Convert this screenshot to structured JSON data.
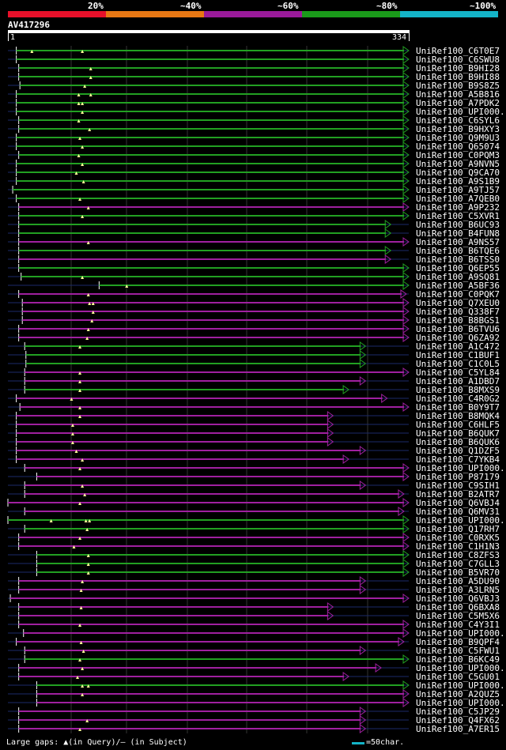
{
  "legend": {
    "labels": [
      "20%",
      "~40%",
      "~60%",
      "~80%",
      "~100%"
    ],
    "colors": [
      "#e8102a",
      "#e87814",
      "#9a1a9a",
      "#1a9a1a",
      "#14b4c8"
    ]
  },
  "query": {
    "name": "AV417296",
    "start": "1",
    "end": "334",
    "length": 334
  },
  "colors": {
    "green": "#22a022",
    "magenta": "#a020a0",
    "gap": "#1c2a6a",
    "marker": "#ffff99"
  },
  "hits": [
    {
      "label": "UniRef100_C6T0E7",
      "s": 7,
      "e": 334,
      "c": "green",
      "t": 2,
      "m": [
        20,
        62
      ]
    },
    {
      "label": "UniRef100_C6SWU8",
      "s": 7,
      "e": 334,
      "c": "green",
      "t": 2,
      "m": []
    },
    {
      "label": "UniRef100_B9HI28",
      "s": 9,
      "e": 334,
      "c": "green",
      "t": 2,
      "m": [
        69
      ]
    },
    {
      "label": "UniRef100_B9HI88",
      "s": 9,
      "e": 334,
      "c": "green",
      "t": 2,
      "m": [
        69
      ]
    },
    {
      "label": "UniRef100_B9S8Z5",
      "s": 10,
      "e": 334,
      "c": "green",
      "t": 2,
      "m": [
        64
      ]
    },
    {
      "label": "UniRef100_A5B816",
      "s": 7,
      "e": 334,
      "c": "green",
      "t": 2,
      "m": [
        59,
        69
      ]
    },
    {
      "label": "UniRef100_A7PDK2",
      "s": 7,
      "e": 334,
      "c": "green",
      "t": 2,
      "m": [
        59,
        62
      ]
    },
    {
      "label": "UniRef100_UPI000..",
      "s": 7,
      "e": 334,
      "c": "green",
      "t": 2,
      "m": [
        62
      ]
    },
    {
      "label": "UniRef100_C6SYL6",
      "s": 9,
      "e": 334,
      "c": "green",
      "t": 2,
      "m": [
        59
      ]
    },
    {
      "label": "UniRef100_B9HXY3",
      "s": 9,
      "e": 334,
      "c": "green",
      "t": 2,
      "m": [
        68
      ]
    },
    {
      "label": "UniRef100_Q9M9U3",
      "s": 7,
      "e": 334,
      "c": "green",
      "t": 2,
      "m": [
        60
      ]
    },
    {
      "label": "UniRef100_Q65074",
      "s": 7,
      "e": 334,
      "c": "green",
      "t": 2,
      "m": [
        62
      ]
    },
    {
      "label": "UniRef100_C0PQM3",
      "s": 9,
      "e": 334,
      "c": "green",
      "t": 2,
      "m": [
        59
      ]
    },
    {
      "label": "UniRef100_A9NVN5",
      "s": 7,
      "e": 334,
      "c": "green",
      "t": 2,
      "m": [
        62
      ]
    },
    {
      "label": "UniRef100_Q9CA70",
      "s": 7,
      "e": 334,
      "c": "green",
      "t": 2,
      "m": [
        57
      ]
    },
    {
      "label": "UniRef100_A9S1B9",
      "s": 7,
      "e": 334,
      "c": "green",
      "t": 2,
      "m": [
        63
      ]
    },
    {
      "label": "UniRef100_A9TJ57",
      "s": 4,
      "e": 334,
      "c": "green",
      "t": 2,
      "m": []
    },
    {
      "label": "UniRef100_A7QEB0",
      "s": 7,
      "e": 334,
      "c": "green",
      "t": 2,
      "m": [
        60
      ]
    },
    {
      "label": "UniRef100_A9P232",
      "s": 9,
      "e": 334,
      "c": "magenta",
      "t": 2,
      "m": [
        67
      ]
    },
    {
      "label": "UniRef100_C5XVR1",
      "s": 9,
      "e": 334,
      "c": "green",
      "t": 2,
      "m": [
        62
      ]
    },
    {
      "label": "UniRef100_B6UC93",
      "s": 9,
      "e": 319,
      "c": "green",
      "t": 2,
      "m": []
    },
    {
      "label": "UniRef100_B4FUN8",
      "s": 9,
      "e": 319,
      "c": "green",
      "t": 2,
      "m": []
    },
    {
      "label": "UniRef100_A9NS57",
      "s": 9,
      "e": 334,
      "c": "magenta",
      "t": 2,
      "m": [
        67
      ]
    },
    {
      "label": "UniRef100_B6TQE6",
      "s": 9,
      "e": 319,
      "c": "green",
      "t": 2,
      "m": []
    },
    {
      "label": "UniRef100_B6TSS0",
      "s": 9,
      "e": 319,
      "c": "magenta",
      "t": 2,
      "m": []
    },
    {
      "label": "UniRef100_Q6EP55",
      "s": 9,
      "e": 334,
      "c": "green",
      "t": 2,
      "m": []
    },
    {
      "label": "UniRef100_A9SQ81",
      "s": 11,
      "e": 334,
      "c": "green",
      "t": 2,
      "m": [
        62
      ]
    },
    {
      "label": "UniRef100_A5BF36",
      "s": 76,
      "e": 334,
      "c": "green",
      "t": 2,
      "m": [
        99
      ]
    },
    {
      "label": "UniRef100_C0PQK7",
      "s": 9,
      "e": 332,
      "c": "magenta",
      "t": 2,
      "m": [
        67
      ]
    },
    {
      "label": "UniRef100_Q7XEU0",
      "s": 12,
      "e": 334,
      "c": "magenta",
      "t": 2,
      "m": [
        68,
        71
      ]
    },
    {
      "label": "UniRef100_Q338F7",
      "s": 12,
      "e": 334,
      "c": "magenta",
      "t": 2,
      "m": [
        71
      ]
    },
    {
      "label": "UniRef100_B8BGS1",
      "s": 12,
      "e": 334,
      "c": "magenta",
      "t": 2,
      "m": [
        70
      ]
    },
    {
      "label": "UniRef100_B6TVU6",
      "s": 9,
      "e": 334,
      "c": "magenta",
      "t": 2,
      "m": [
        67
      ]
    },
    {
      "label": "UniRef100_Q6ZA92",
      "s": 9,
      "e": 334,
      "c": "magenta",
      "t": 2,
      "m": [
        66
      ]
    },
    {
      "label": "UniRef100_A1C472",
      "s": 14,
      "e": 298,
      "c": "green",
      "t": 2,
      "m": [
        60
      ]
    },
    {
      "label": "UniRef100_C1BUF1",
      "s": 15,
      "e": 298,
      "c": "green",
      "t": 2,
      "m": []
    },
    {
      "label": "UniRef100_C1C0L5",
      "s": 15,
      "e": 298,
      "c": "green",
      "t": 2,
      "m": []
    },
    {
      "label": "UniRef100_C5YL84",
      "s": 14,
      "e": 334,
      "c": "magenta",
      "t": 2,
      "m": [
        60
      ]
    },
    {
      "label": "UniRef100_A1DBD7",
      "s": 14,
      "e": 298,
      "c": "magenta",
      "t": 2,
      "m": [
        60
      ]
    },
    {
      "label": "UniRef100_B8MXS9",
      "s": 14,
      "e": 284,
      "c": "green",
      "t": 2,
      "m": [
        60
      ]
    },
    {
      "label": "UniRef100_C4R0G2",
      "s": 7,
      "e": 316,
      "c": "magenta",
      "t": 2,
      "m": [
        53
      ]
    },
    {
      "label": "UniRef100_B0Y9T7",
      "s": 10,
      "e": 334,
      "c": "magenta",
      "t": 2,
      "m": [
        60
      ]
    },
    {
      "label": "UniRef100_B8MQK4",
      "s": 7,
      "e": 271,
      "c": "magenta",
      "t": 2,
      "m": [
        60
      ]
    },
    {
      "label": "UniRef100_C6HLF5",
      "s": 7,
      "e": 271,
      "c": "magenta",
      "t": 2,
      "m": [
        54
      ]
    },
    {
      "label": "UniRef100_B6QUK7",
      "s": 7,
      "e": 271,
      "c": "magenta",
      "t": 2,
      "m": [
        54
      ]
    },
    {
      "label": "UniRef100_B6QUK6",
      "s": 7,
      "e": 271,
      "c": "magenta",
      "t": 2,
      "m": [
        54
      ]
    },
    {
      "label": "UniRef100_Q1DZF5",
      "s": 7,
      "e": 298,
      "c": "magenta",
      "t": 2,
      "m": [
        57
      ]
    },
    {
      "label": "UniRef100_C7YKB4",
      "s": 7,
      "e": 284,
      "c": "magenta",
      "t": 2,
      "m": [
        62
      ]
    },
    {
      "label": "UniRef100_UPI000..",
      "s": 14,
      "e": 334,
      "c": "magenta",
      "t": 2,
      "m": [
        60
      ]
    },
    {
      "label": "UniRef100_P87179",
      "s": 24,
      "e": 334,
      "c": "magenta",
      "t": 2,
      "m": []
    },
    {
      "label": "UniRef100_C9SIH1",
      "s": 14,
      "e": 298,
      "c": "magenta",
      "t": 2,
      "m": [
        62
      ]
    },
    {
      "label": "UniRef100_B2ATR7",
      "s": 14,
      "e": 330,
      "c": "magenta",
      "t": 2,
      "m": [
        64
      ]
    },
    {
      "label": "UniRef100_Q6VBJ4",
      "s": 0,
      "e": 334,
      "c": "magenta",
      "t": 2,
      "m": [
        60
      ]
    },
    {
      "label": "UniRef100_Q6MV31",
      "s": 14,
      "e": 330,
      "c": "magenta",
      "t": 2,
      "m": []
    },
    {
      "label": "UniRef100_UPI000..",
      "s": 0,
      "e": 334,
      "c": "green",
      "t": 2,
      "m": [
        36,
        65,
        68
      ]
    },
    {
      "label": "UniRef100_Q17RH7",
      "s": 14,
      "e": 334,
      "c": "green",
      "t": 2,
      "m": [
        66
      ]
    },
    {
      "label": "UniRef100_C0RXK5",
      "s": 9,
      "e": 334,
      "c": "magenta",
      "t": 2,
      "m": [
        60
      ]
    },
    {
      "label": "UniRef100_C1H1N3",
      "s": 9,
      "e": 334,
      "c": "magenta",
      "t": 2,
      "m": [
        55
      ]
    },
    {
      "label": "UniRef100_C8ZFS3",
      "s": 24,
      "e": 334,
      "c": "green",
      "t": 2,
      "m": [
        67
      ]
    },
    {
      "label": "UniRef100_C7GLL3",
      "s": 24,
      "e": 334,
      "c": "green",
      "t": 2,
      "m": [
        67
      ]
    },
    {
      "label": "UniRef100_B5VR70",
      "s": 24,
      "e": 334,
      "c": "green",
      "t": 2,
      "m": [
        67
      ]
    },
    {
      "label": "UniRef100_A5DU90",
      "s": 9,
      "e": 298,
      "c": "magenta",
      "t": 2,
      "m": [
        62
      ]
    },
    {
      "label": "UniRef100_A3LRN5",
      "s": 9,
      "e": 298,
      "c": "magenta",
      "t": 2,
      "m": [
        61
      ]
    },
    {
      "label": "UniRef100_Q6VBJ3",
      "s": 2,
      "e": 334,
      "c": "magenta",
      "t": 2,
      "m": []
    },
    {
      "label": "UniRef100_Q6BXA8",
      "s": 9,
      "e": 271,
      "c": "magenta",
      "t": 2,
      "m": [
        61
      ]
    },
    {
      "label": "UniRef100_C5M5X6",
      "s": 9,
      "e": 271,
      "c": "magenta",
      "t": 2,
      "m": []
    },
    {
      "label": "UniRef100_C4Y3I1",
      "s": 9,
      "e": 334,
      "c": "magenta",
      "t": 2,
      "m": [
        60
      ]
    },
    {
      "label": "UniRef100_UPI000..",
      "s": 13,
      "e": 334,
      "c": "magenta",
      "t": 2,
      "m": []
    },
    {
      "label": "UniRef100_B9QPF4",
      "s": 7,
      "e": 330,
      "c": "magenta",
      "t": 2,
      "m": [
        61
      ]
    },
    {
      "label": "UniRef100_C5FWU1",
      "s": 14,
      "e": 298,
      "c": "magenta",
      "t": 2,
      "m": [
        63
      ]
    },
    {
      "label": "UniRef100_B6KC49",
      "s": 14,
      "e": 334,
      "c": "green",
      "t": 2,
      "m": [
        60
      ]
    },
    {
      "label": "UniRef100_UPI000..",
      "s": 9,
      "e": 311,
      "c": "magenta",
      "t": 2,
      "m": [
        62
      ]
    },
    {
      "label": "UniRef100_C5GU01",
      "s": 9,
      "e": 284,
      "c": "magenta",
      "t": 2,
      "m": [
        58
      ]
    },
    {
      "label": "UniRef100_UPI000..",
      "s": 24,
      "e": 334,
      "c": "green",
      "t": 2,
      "m": [
        62,
        67
      ]
    },
    {
      "label": "UniRef100_A2QUZ5",
      "s": 24,
      "e": 334,
      "c": "magenta",
      "t": 2,
      "m": [
        62
      ]
    },
    {
      "label": "UniRef100_UPI000..",
      "s": 24,
      "e": 334,
      "c": "magenta",
      "t": 2,
      "m": []
    },
    {
      "label": "UniRef100_C5JP29",
      "s": 9,
      "e": 298,
      "c": "magenta",
      "t": 2,
      "m": []
    },
    {
      "label": "UniRef100_Q4FX62",
      "s": 9,
      "e": 298,
      "c": "magenta",
      "t": 2,
      "m": [
        66
      ]
    },
    {
      "label": "UniRef100_A7ER15",
      "s": 9,
      "e": 298,
      "c": "magenta",
      "t": 2,
      "m": [
        60
      ]
    }
  ],
  "footer": {
    "gaps_text": "Large gaps: ▲(in Query)/– (in Subject)",
    "scale_text": "=50char."
  }
}
